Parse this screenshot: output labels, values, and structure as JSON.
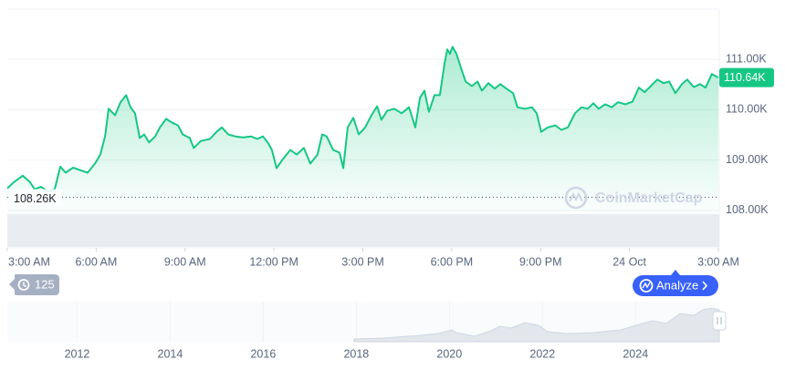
{
  "chart_data": {
    "type": "area",
    "color": "#16c784",
    "x": [
      0,
      0.22,
      0.52,
      0.77,
      0.92,
      1.14,
      1.36,
      1.6,
      1.79,
      1.97,
      2.22,
      2.46,
      2.71,
      2.96,
      3.14,
      3.3,
      3.42,
      3.64,
      3.82,
      4.01,
      4.16,
      4.31,
      4.47,
      4.62,
      4.78,
      4.99,
      5.15,
      5.36,
      5.55,
      5.76,
      5.92,
      6.16,
      6.29,
      6.53,
      6.84,
      7.06,
      7.24,
      7.46,
      7.7,
      7.95,
      8.23,
      8.44,
      8.63,
      8.81,
      8.93,
      9.09,
      9.3,
      9.55,
      9.77,
      10.01,
      10.23,
      10.47,
      10.63,
      10.78,
      11.0,
      11.21,
      11.34,
      11.49,
      11.68,
      11.86,
      12.08,
      12.29,
      12.48,
      12.63,
      12.82,
      13.06,
      13.31,
      13.56,
      13.77,
      13.93,
      14.08,
      14.23,
      14.42,
      14.6,
      14.76,
      14.85,
      14.94,
      15.03,
      15.16,
      15.31,
      15.47,
      15.68,
      15.87,
      16.02,
      16.24,
      16.45,
      16.64,
      16.85,
      17.07,
      17.22,
      17.47,
      17.71,
      17.87,
      18.02,
      18.24,
      18.49,
      18.7,
      18.92,
      19.16,
      19.38,
      19.59,
      19.78,
      19.96,
      20.18,
      20.4,
      20.61,
      20.86,
      21.1,
      21.32,
      21.51,
      21.72,
      21.94,
      22.15,
      22.34,
      22.55,
      22.77,
      22.95,
      23.17,
      23.38,
      23.57,
      23.78,
      24.0
    ],
    "values": [
      108440,
      108560,
      108690,
      108560,
      108420,
      108470,
      108380,
      108420,
      108870,
      108750,
      108850,
      108800,
      108750,
      108930,
      109110,
      109470,
      110020,
      109890,
      110150,
      110290,
      110050,
      109930,
      109440,
      109510,
      109350,
      109470,
      109650,
      109820,
      109750,
      109690,
      109510,
      109440,
      109240,
      109380,
      109420,
      109560,
      109650,
      109510,
      109470,
      109450,
      109470,
      109420,
      109470,
      109330,
      109200,
      108840,
      109020,
      109200,
      109110,
      109240,
      108930,
      109110,
      109510,
      109470,
      109200,
      109150,
      108840,
      109650,
      109840,
      109510,
      109650,
      109890,
      110070,
      109800,
      109980,
      110020,
      109930,
      110050,
      109650,
      110240,
      110380,
      109960,
      110290,
      110290,
      110930,
      111200,
      111110,
      111250,
      111110,
      110840,
      110560,
      110470,
      110560,
      110380,
      110530,
      110420,
      110510,
      110420,
      110330,
      110050,
      110020,
      110050,
      109930,
      109560,
      109650,
      109690,
      109600,
      109650,
      109930,
      110050,
      110020,
      110130,
      110020,
      110110,
      110050,
      110150,
      110110,
      110160,
      110440,
      110350,
      110470,
      110600,
      110530,
      110560,
      110330,
      110510,
      110600,
      110450,
      110510,
      110440,
      110710,
      110640
    ],
    "xlim": [
      0,
      24
    ],
    "xticks": [
      {
        "value": 0,
        "label": "3:00 AM"
      },
      {
        "value": 3,
        "label": "6:00 AM"
      },
      {
        "value": 6,
        "label": "9:00 AM"
      },
      {
        "value": 9,
        "label": "12:00 PM"
      },
      {
        "value": 12,
        "label": "3:00 PM"
      },
      {
        "value": 15,
        "label": "6:00 PM"
      },
      {
        "value": 18,
        "label": "9:00 PM"
      },
      {
        "value": 21,
        "label": "24 Oct"
      },
      {
        "value": 24,
        "label": "3:00 AM"
      }
    ],
    "ylim": [
      107980,
      112000
    ],
    "yticks": [
      {
        "value": 108000,
        "label": "108.00K"
      },
      {
        "value": 109000,
        "label": "109.00K"
      },
      {
        "value": 110000,
        "label": "110.00K"
      },
      {
        "value": 111000,
        "label": "111.00K"
      }
    ],
    "grid": true,
    "reference_line": {
      "value": 108260,
      "label": "108.26K"
    },
    "current_price": {
      "value": 110640,
      "label": "110.64K"
    },
    "watermark": "CoinMarketCap",
    "overview": {
      "xlim": [
        2010.5,
        2025.78
      ],
      "xticks": [
        2012,
        2014,
        2016,
        2018,
        2020,
        2022,
        2024
      ]
    }
  },
  "controls": {
    "history_badge": "125",
    "analyze_button": "Analyze"
  }
}
